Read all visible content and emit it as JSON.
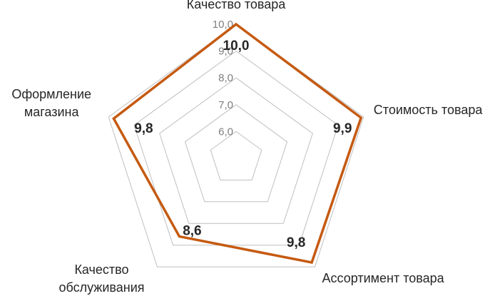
{
  "chart_data": {
    "type": "radar",
    "categories": [
      [
        "Качество товара"
      ],
      [
        "Стоимость товара"
      ],
      [
        "Ассортимент товара"
      ],
      [
        "Качество",
        "обслуживания"
      ],
      [
        "Оформление",
        "магазина"
      ]
    ],
    "values": [
      10.0,
      9.9,
      9.8,
      8.6,
      9.8
    ],
    "data_labels": [
      "10,0",
      "9,9",
      "9,8",
      "8,6",
      "9,8"
    ],
    "rlim": [
      5,
      10
    ],
    "ticks": [
      6,
      7,
      8,
      9,
      10
    ],
    "tick_labels": [
      "6,0",
      "7,0",
      "8,0",
      "9,0",
      "10,0"
    ],
    "grid": true,
    "legend": "none",
    "series_color": "#c55a11",
    "grid_color": "#bfbfbf"
  }
}
